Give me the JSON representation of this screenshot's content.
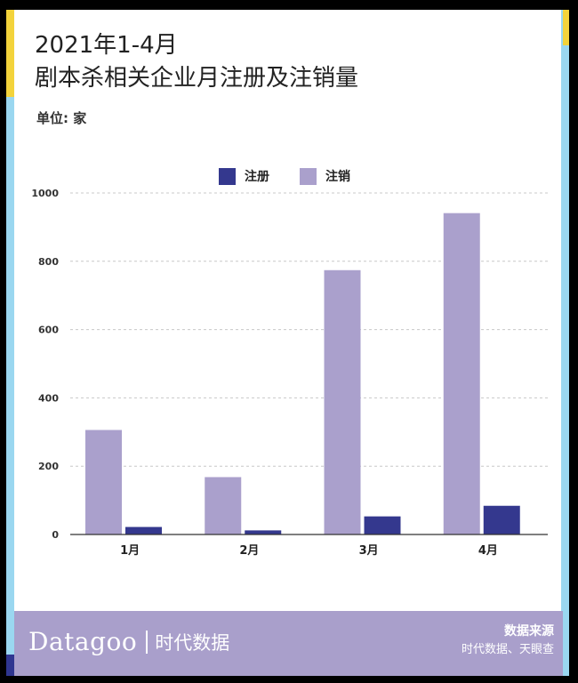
{
  "header": {
    "title_line1": "2021年1-4月",
    "title_line2": "剧本杀相关企业月注册及注销量",
    "unit": "单位: 家"
  },
  "colors": {
    "register": "#34388e",
    "cancel": "#aaa0cc",
    "footer": "#a99fcb",
    "frame": "#9ad7f0",
    "accent_yellow": "#f3d33b"
  },
  "chart_data": {
    "type": "bar",
    "categories": [
      "1月",
      "2月",
      "3月",
      "4月"
    ],
    "series": [
      {
        "name": "注册",
        "values": [
          22,
          12,
          53,
          84
        ]
      },
      {
        "name": "注销",
        "values": [
          306,
          168,
          774,
          941
        ]
      }
    ],
    "ylim": [
      0,
      1000
    ],
    "yticks": [
      0,
      200,
      400,
      600,
      800,
      1000
    ],
    "grid": true,
    "legend": "top-center"
  },
  "footer": {
    "brand_latin": "Datagoo",
    "brand_cn": "时代数据",
    "source_title": "数据来源",
    "source_text": "时代数据、天眼查"
  }
}
